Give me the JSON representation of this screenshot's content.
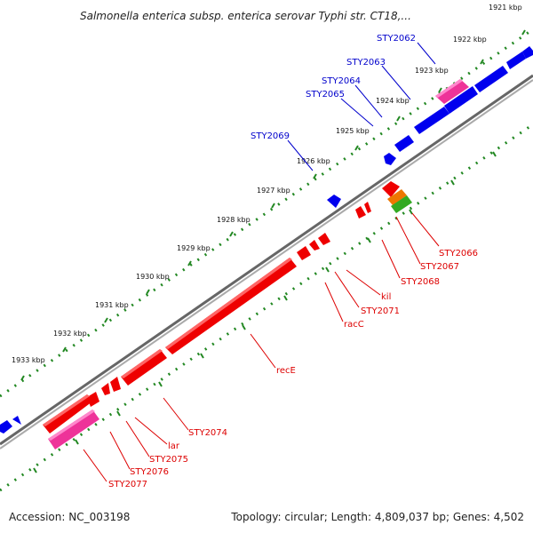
{
  "title": "Salmonella enterica subsp. enterica serovar Typhi str. CT18,...",
  "footer": {
    "accession": "Accession: NC_003198",
    "topology": "Topology: circular; Length: 4,809,037 bp; Genes: 4,502"
  },
  "kbp_labels": [
    "1921 kbp",
    "1922 kbp",
    "1923 kbp",
    "1924 kbp",
    "1925 kbp",
    "1926 kbp",
    "1927 kbp",
    "1928 kbp",
    "1929 kbp",
    "1930 kbp",
    "1931 kbp",
    "1932 kbp",
    "1933 kbp"
  ],
  "genes_upper": [
    "STY2062",
    "STY2063",
    "STY2064",
    "STY2065",
    "STY2069"
  ],
  "genes_lower": [
    "STY2066",
    "STY2067",
    "STY2068",
    "kil",
    "STY2071",
    "racC",
    "recE",
    "STY2074",
    "lar",
    "STY2075",
    "STY2076",
    "STY2077"
  ],
  "colors": {
    "upper_gene": "#0000ee",
    "lower_gene": "#ee0000",
    "pseudo": "#ee3399",
    "orange": "#ee7700",
    "green": "#33aa22",
    "backbone": "#777777",
    "ticks": "#228822"
  }
}
